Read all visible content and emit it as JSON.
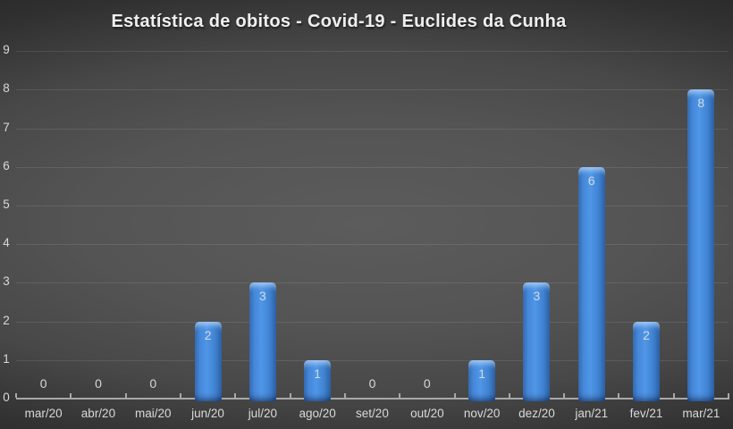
{
  "chart_data": {
    "type": "bar",
    "title": "Estatística de obitos - Covid-19 - Euclides da Cunha",
    "categories": [
      "mar/20",
      "abr/20",
      "mai/20",
      "jun/20",
      "jul/20",
      "ago/20",
      "set/20",
      "out/20",
      "nov/20",
      "dez/20",
      "jan/21",
      "fev/21",
      "mar/21"
    ],
    "values": [
      0,
      0,
      0,
      2,
      3,
      1,
      0,
      0,
      1,
      3,
      6,
      2,
      8
    ],
    "xlabel": "",
    "ylabel": "",
    "ylim": [
      0,
      9
    ],
    "yticks": [
      0,
      1,
      2,
      3,
      4,
      5,
      6,
      7,
      8,
      9
    ],
    "grid": true,
    "legend": "none",
    "data_labels": true,
    "theme": {
      "background_center": "#5c5c5c",
      "background_edge": "#1d1d1d",
      "title_color": "#efefef",
      "tick_label_color": "#d9d9d9",
      "data_label_color": "#d2dae4",
      "grid_color": "rgba(255,255,255,0.10)",
      "axis_color": "#a8a8a8",
      "bar_fill": "#4083d2",
      "bar_light": "#5096e7",
      "bar_mid": "#4587d8",
      "bar_dark": "#346cb3",
      "bar_edge": "#2b61a6"
    }
  }
}
